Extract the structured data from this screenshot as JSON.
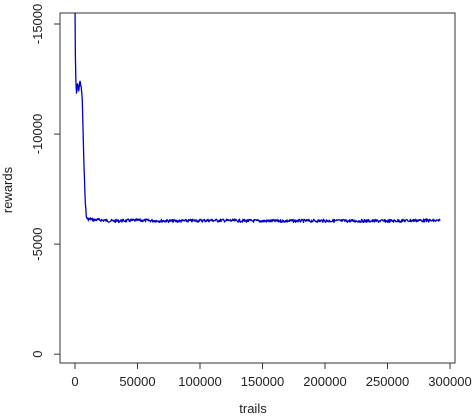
{
  "chart_data": {
    "type": "line",
    "title": "",
    "xlabel": "trails",
    "ylabel": "rewards",
    "xlim": [
      -12000,
      304000
    ],
    "ylim": [
      400,
      -15500
    ],
    "y_axis_reversed": true,
    "grid": false,
    "x_ticks": [
      0,
      50000,
      100000,
      150000,
      200000,
      250000,
      300000
    ],
    "x_tick_labels": [
      "0",
      "50000",
      "100000",
      "150000",
      "200000",
      "250000",
      "300000"
    ],
    "y_ticks": [
      0,
      -5000,
      -10000,
      -15000
    ],
    "y_tick_labels": [
      "0",
      "-5000",
      "-10000",
      "-15000"
    ],
    "series": [
      {
        "color": "#0000cc",
        "x": [
          0,
          300,
          700,
          1200,
          2000,
          3000,
          4000,
          5000,
          5800,
          6500,
          7200,
          8000,
          9000,
          10000,
          11000,
          12000,
          15000,
          20000,
          30000,
          50000,
          80000,
          110000,
          150000,
          200000,
          250000,
          275000,
          292000
        ],
        "y": [
          -15800,
          -13500,
          -12400,
          -11800,
          -12300,
          -12000,
          -12400,
          -12100,
          -11600,
          -10000,
          -8600,
          -7200,
          -6250,
          -6150,
          -6120,
          -6150,
          -6100,
          -6100,
          -6050,
          -6080,
          -6050,
          -6080,
          -6050,
          -6060,
          -6050,
          -6080,
          -6060
        ]
      }
    ]
  }
}
